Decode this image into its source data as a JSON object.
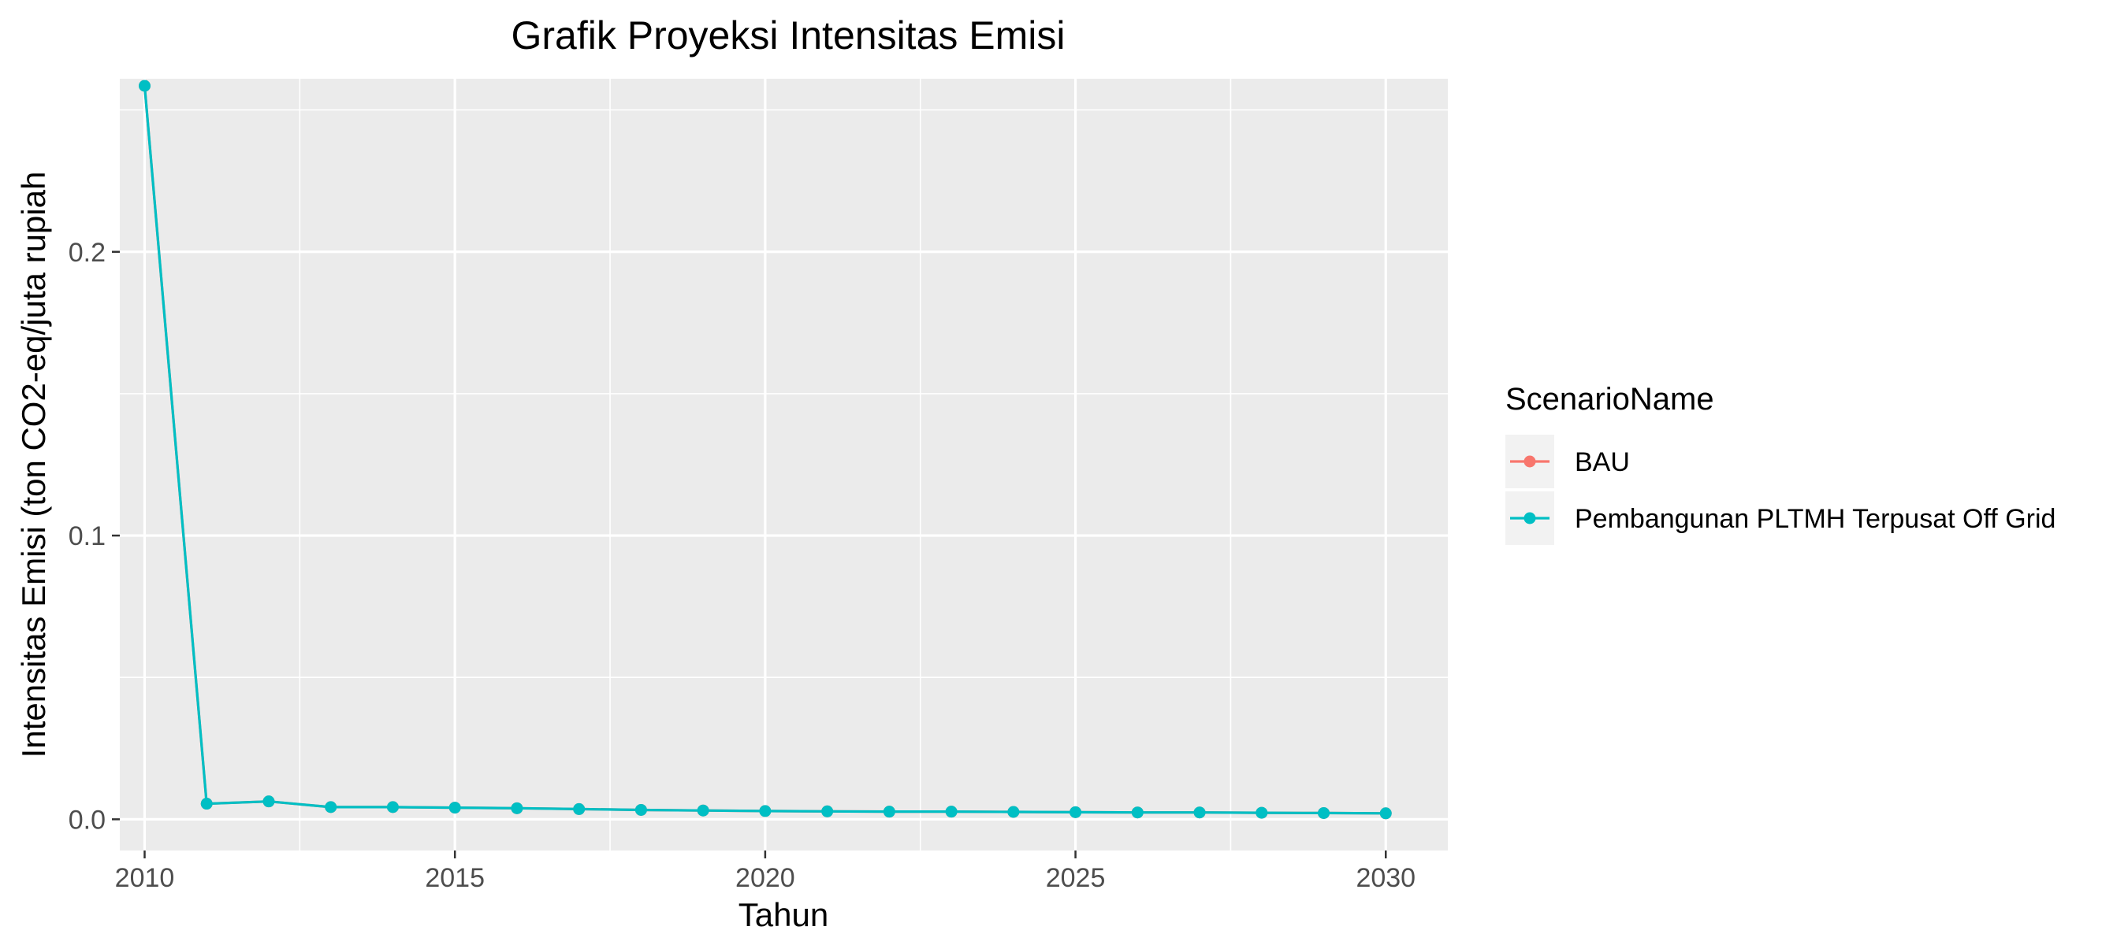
{
  "chart_data": {
    "type": "line",
    "title": "Grafik Proyeksi Intensitas Emisi",
    "xlabel": "Tahun",
    "ylabel": "Intensitas Emisi (ton CO2-eq/juta rupiah",
    "xlim": [
      2009.6,
      2031
    ],
    "ylim": [
      -0.011,
      0.261
    ],
    "x_ticks": [
      2010,
      2015,
      2020,
      2025,
      2030
    ],
    "y_ticks": [
      0.0,
      0.1,
      0.2
    ],
    "y_tick_labels": [
      "0.0",
      "0.1",
      "0.2"
    ],
    "grid": true,
    "legend": {
      "title": "ScenarioName",
      "placement": "right",
      "entries": [
        "BAU",
        "Pembangunan PLTMH Terpusat Off Grid"
      ]
    },
    "x": [
      2010,
      2011,
      2012,
      2013,
      2014,
      2015,
      2016,
      2017,
      2018,
      2019,
      2020,
      2021,
      2022,
      2023,
      2024,
      2025,
      2026,
      2027,
      2028,
      2029,
      2030
    ],
    "series": [
      {
        "name": "BAU",
        "color": "#F8766D",
        "values": [
          0.2585,
          0.0055,
          0.0063,
          0.0043,
          0.0043,
          0.0041,
          0.0039,
          0.0036,
          0.0033,
          0.0031,
          0.0029,
          0.0028,
          0.0027,
          0.0027,
          0.0026,
          0.0025,
          0.0024,
          0.0024,
          0.0023,
          0.0022,
          0.0021
        ]
      },
      {
        "name": "Pembangunan PLTMH Terpusat Off Grid",
        "color": "#00BFC4",
        "values": [
          0.2585,
          0.0055,
          0.0063,
          0.0043,
          0.0043,
          0.0041,
          0.0039,
          0.0036,
          0.0033,
          0.0031,
          0.0029,
          0.0028,
          0.0027,
          0.0027,
          0.0026,
          0.0025,
          0.0024,
          0.0024,
          0.0023,
          0.0022,
          0.0021
        ]
      }
    ]
  }
}
